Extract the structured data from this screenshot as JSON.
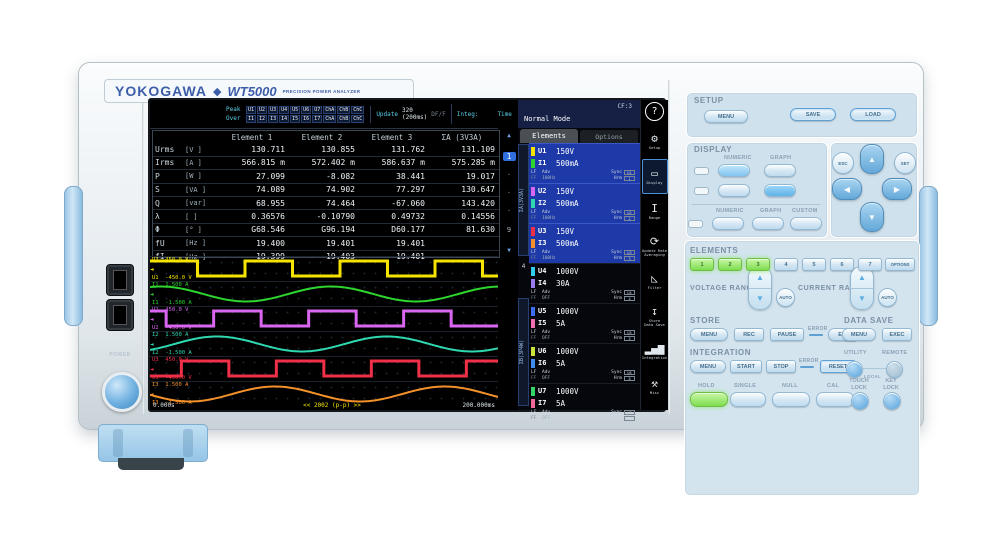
{
  "branding": {
    "maker": "YOKOGAWA",
    "diamond": "◆",
    "model": "WT5000",
    "subtitle": "PRECISION POWER ANALYZER"
  },
  "left_io": {
    "power_label": "POWER"
  },
  "screen": {
    "header": {
      "peak_label": "Peak",
      "over_label": "Over",
      "peak_cells": [
        "U1",
        "U2",
        "U3",
        "U4",
        "U5",
        "U6",
        "U7",
        "ChA",
        "ChB",
        "ChC"
      ],
      "over_cells": [
        "I1",
        "I2",
        "I3",
        "I4",
        "I5",
        "I6",
        "I7",
        "ChA",
        "ChB",
        "ChC"
      ],
      "update_label": "Update",
      "update_value": "320 (200ms)",
      "update_icon": "DF/F",
      "integ_label": "Integ:",
      "time_label": "Time",
      "time_value": "-----:--:--"
    },
    "status": {
      "mode": "Normal Mode",
      "cf": "CF:3",
      "help": "?"
    },
    "table": {
      "columns": [
        "Element 1",
        "Element 2",
        "Element 3",
        "ΣA (3V3A)"
      ],
      "rows": [
        {
          "name": "Urms",
          "unit": "[V  ]",
          "values": [
            "130.711",
            "130.855",
            "131.762",
            "131.109"
          ]
        },
        {
          "name": "Irms",
          "unit": "[A  ]",
          "values": [
            "566.815 m",
            "572.402 m",
            "586.637 m",
            "575.285 m"
          ]
        },
        {
          "name": "P",
          "unit": "[W  ]",
          "values": [
            "27.099",
            "-8.082",
            "38.441",
            "19.017"
          ]
        },
        {
          "name": "S",
          "unit": "[VA ]",
          "values": [
            "74.089",
            "74.902",
            "77.297",
            "130.647"
          ]
        },
        {
          "name": "Q",
          "unit": "[var]",
          "values": [
            "68.955",
            "74.464",
            "-67.060",
            "143.420"
          ]
        },
        {
          "name": "λ",
          "unit": "[   ]",
          "values": [
            "0.36576",
            "-0.10790",
            "0.49732",
            "0.14556"
          ]
        },
        {
          "name": "Φ",
          "unit": "[°  ]",
          "values": [
            "G68.546",
            "G96.194",
            "D60.177",
            "81.630"
          ]
        },
        {
          "name": "fU",
          "unit": "[Hz ]",
          "values": [
            "19.400",
            "19.401",
            "19.401",
            ""
          ]
        },
        {
          "name": "fI",
          "unit": "[Hz ]",
          "values": [
            "19.399",
            "19.403",
            "19.401",
            ""
          ]
        }
      ]
    },
    "pager": {
      "up": "▲",
      "current": "1",
      "dots": [
        "·",
        "·",
        "·"
      ],
      "last": "9",
      "down": "▼"
    },
    "waveform": {
      "group_label": "Group",
      "t_start": "0.000s",
      "marker": "<< 2002 (p-p) >>",
      "t_end": "200.000ms",
      "traces": [
        {
          "ch": "U1",
          "top": "450.0 V",
          "bottom": "-450.0 V",
          "color": "#f5e400",
          "type": "square",
          "phase": 0
        },
        {
          "ch": "I1",
          "top": "1.500 A",
          "bottom": "-1.500 A",
          "color": "#2ed52e",
          "type": "sine",
          "phase": 0
        },
        {
          "ch": "U2",
          "top": "450.0 V",
          "bottom": "-450.0 V",
          "color": "#d966f0",
          "type": "square",
          "phase": 0.33
        },
        {
          "ch": "I2",
          "top": "1.500 A",
          "bottom": "-1.500 A",
          "color": "#2fd8b0",
          "type": "sine",
          "phase": 0.33
        },
        {
          "ch": "U3",
          "top": "450.0 V",
          "bottom": "-450.0 V",
          "color": "#f03048",
          "type": "square",
          "phase": 0.67
        },
        {
          "ch": "I3",
          "top": "1.500 A",
          "bottom": "-1.500 A",
          "color": "#f2902a",
          "type": "sine",
          "phase": 0.67
        }
      ]
    },
    "sidebar": {
      "tab_elements": "Elements",
      "tab_options": "Options",
      "wiring_a": "ΣA(3V3A)",
      "element4": "4",
      "wiring_b": "ΣB(3P4W)",
      "sub": {
        "lf": "LF",
        "ff": "FF",
        "adv": "Adv",
        "sync": "Sync",
        "hrm": "Hrm"
      },
      "groups": [
        {
          "n": "1",
          "u": "U1",
          "ur": "150V",
          "uc": "#f5e400",
          "i": "I1",
          "ir": "500mA",
          "ic": "#2ed52e",
          "freq": "100Hz",
          "active": true
        },
        {
          "n": "2",
          "u": "U2",
          "ur": "150V",
          "uc": "#d966f0",
          "i": "I2",
          "ir": "500mA",
          "ic": "#2fd8b0",
          "freq": "100Hz",
          "active": true
        },
        {
          "n": "3",
          "u": "U3",
          "ur": "150V",
          "uc": "#f03048",
          "i": "I3",
          "ir": "500mA",
          "ic": "#f2902a",
          "freq": "100Hz",
          "active": true
        },
        {
          "n": "4",
          "u": "U4",
          "ur": "1000V",
          "uc": "#33ccee",
          "i": "I4",
          "ir": "30A",
          "ic": "#9b7bf0",
          "freq": "OFF",
          "active": false
        },
        {
          "n": "5",
          "u": "U5",
          "ur": "1000V",
          "uc": "#3d6df0",
          "i": "I5",
          "ir": "5A",
          "ic": "#f06fb0",
          "freq": "OFF",
          "active": false
        },
        {
          "n": "6",
          "u": "U6",
          "ur": "1000V",
          "uc": "#cbe23a",
          "i": "I6",
          "ir": "5A",
          "ic": "#3f8df0",
          "freq": "OFF",
          "active": false
        },
        {
          "n": "7",
          "u": "U7",
          "ur": "1000V",
          "uc": "#35d46a",
          "i": "I7",
          "ir": "5A",
          "ic": "#f0699a",
          "freq": "OFF",
          "active": false
        }
      ]
    },
    "menu": [
      {
        "label": "Setup",
        "icon": "⚙",
        "selected": false
      },
      {
        "label": "Display",
        "icon": "▭",
        "selected": true
      },
      {
        "label": "Range",
        "icon": "I",
        "selected": false
      },
      {
        "label": "Update Rate\nAveraging",
        "icon": "⟳",
        "selected": false
      },
      {
        "label": "Filter",
        "icon": "◺",
        "selected": false
      },
      {
        "label": "Store\nData Save",
        "icon": "↧",
        "selected": false
      },
      {
        "label": "Integration",
        "icon": "▂▄▆",
        "selected": false
      },
      {
        "label": "Misc",
        "icon": "⚒",
        "selected": false
      }
    ]
  },
  "panel": {
    "setup": {
      "title": "SETUP",
      "menu": "MENU",
      "save": "SAVE",
      "load": "LOAD"
    },
    "display": {
      "title": "DISPLAY",
      "numeric": "NUMERIC",
      "graph": "GRAPH",
      "custom": "CUSTOM"
    },
    "nav": {
      "esc": "ESC",
      "set": "SET",
      "up": "▲",
      "down": "▼",
      "left": "◀",
      "right": "▶"
    },
    "elements": {
      "title": "ELEMENTS",
      "buttons": [
        "1",
        "2",
        "3",
        "4",
        "5",
        "6",
        "7"
      ],
      "states": [
        true,
        true,
        true,
        false,
        false,
        false,
        false
      ],
      "options": "OPTIONS"
    },
    "ranges": {
      "voltage": "VOLTAGE RANGE",
      "current": "CURRENT RANGE",
      "auto": "AUTO",
      "up": "▲",
      "down": "▼"
    },
    "store": {
      "title": "STORE",
      "menu": "MENU",
      "rec": "REC",
      "pause": "PAUSE",
      "error": "ERROR",
      "end": "END"
    },
    "data_save": {
      "title": "DATA SAVE",
      "menu": "MENU",
      "exec": "EXEC"
    },
    "integration": {
      "title": "INTEGRATION",
      "menu": "MENU",
      "start": "START",
      "stop": "STOP",
      "error": "ERROR",
      "reset": "RESET"
    },
    "utility": {
      "utility": "UTILITY",
      "remote": "REMOTE",
      "local": "LOCAL"
    },
    "bottom": {
      "hold": "HOLD",
      "single": "SINGLE",
      "null": "NULL",
      "cal": "CAL",
      "touch_lock": "TOUCH\nLOCK",
      "key_lock": "KEY\nLOCK"
    }
  }
}
